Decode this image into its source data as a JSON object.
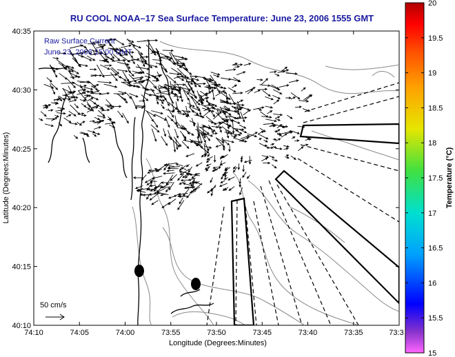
{
  "title": "RU COOL  NOAA–17  Sea Surface Temperature:  June 23, 2006 1555 GMT",
  "annotation": {
    "line1": "Raw Surface Current",
    "line2": "June 23, 2006 15:00 GMT"
  },
  "scale_label": "50 cm/s",
  "xlabel": "Longitude (Degrees:Minutes)",
  "ylabel": "Latitude (Degrees:Minutes)",
  "x_ticks": [
    "74:10",
    "74:05",
    "74:00",
    "73:55",
    "73:50",
    "73:45",
    "73:40",
    "73:35",
    "73:3"
  ],
  "y_ticks": [
    "40:35",
    "40:30",
    "40:25",
    "40:20",
    "40:15",
    "40:10"
  ],
  "colorbar": {
    "label": "Temperature (°C)",
    "ticks": [
      "20",
      "19.5",
      "19",
      "18.5",
      "18",
      "17.5",
      "17",
      "16.5",
      "16",
      "15.5",
      "15"
    ],
    "min": 15,
    "max": 20
  },
  "colors": {
    "title": "#1a1aa0",
    "land_outline": "#000000",
    "bathymetry": "#888888"
  }
}
